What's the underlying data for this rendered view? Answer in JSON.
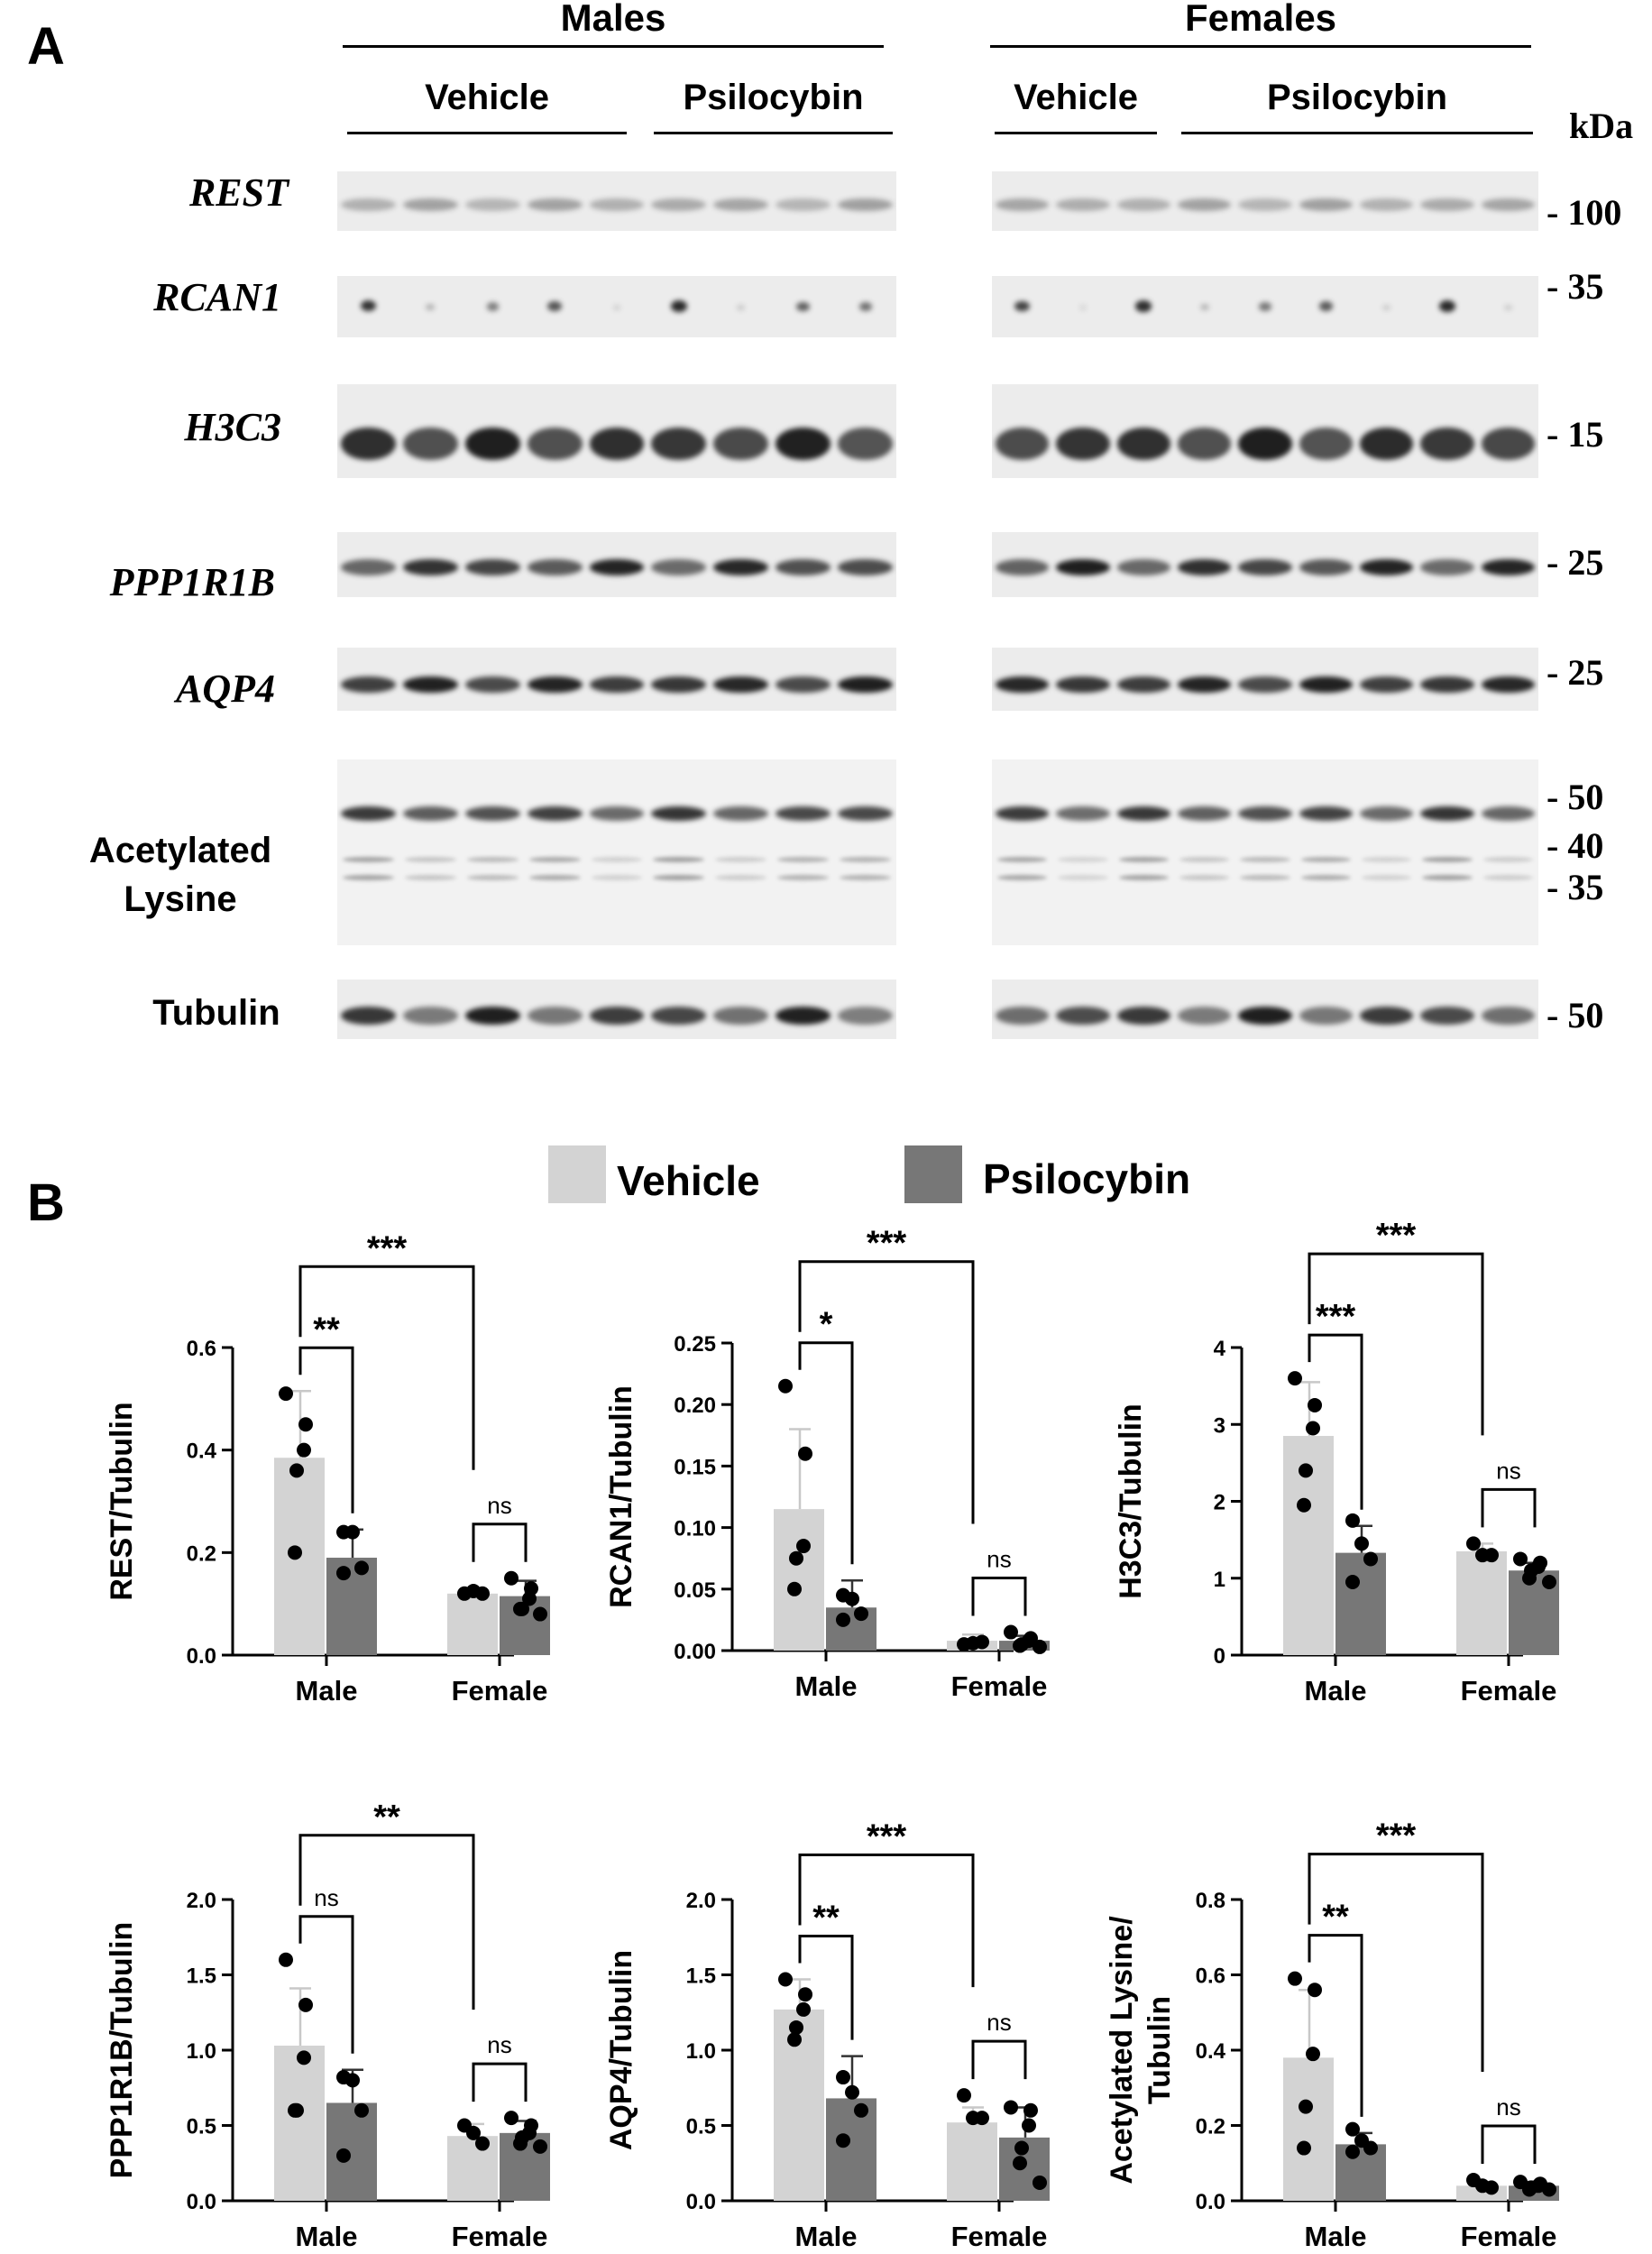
{
  "panel_a": {
    "letter": "A",
    "groups": [
      {
        "title": "Males",
        "sub": [
          {
            "label": "Vehicle"
          },
          {
            "label": "Psilocybin"
          }
        ]
      },
      {
        "title": "Females",
        "sub": [
          {
            "label": "Vehicle"
          },
          {
            "label": "Psilocybin"
          }
        ]
      }
    ],
    "kda_header": "kDa",
    "rows": [
      {
        "label": "REST",
        "style": "gene",
        "markers": [
          "- 100"
        ]
      },
      {
        "label": "RCAN1",
        "style": "gene",
        "markers": [
          "- 35"
        ]
      },
      {
        "label": "H3C3",
        "style": "gene",
        "markers": [
          "- 15"
        ]
      },
      {
        "label": "PPP1R1B",
        "style": "gene",
        "markers": [
          "- 25"
        ]
      },
      {
        "label": "AQP4",
        "style": "gene",
        "markers": [
          "- 25"
        ]
      },
      {
        "label": "Acetylated Lysine",
        "style": "protein",
        "markers": [
          "- 50",
          "- 40",
          "- 35"
        ]
      },
      {
        "label": "Tubulin",
        "style": "protein",
        "markers": [
          "- 50"
        ]
      }
    ]
  },
  "panel_b": {
    "letter": "B",
    "legend": [
      {
        "label": "Vehicle",
        "color": "#d3d3d3"
      },
      {
        "label": "Psilocybin",
        "color": "#777777"
      }
    ]
  },
  "colors": {
    "vehicle": "#d3d3d3",
    "psilocybin": "#777777",
    "point": "#000000"
  },
  "chart_data": [
    {
      "type": "bar",
      "ylabel": "REST/Tubulin",
      "categories": [
        "Male",
        "Female"
      ],
      "ylim": [
        0,
        0.6
      ],
      "yticks": [
        "0.0",
        "0.2",
        "0.4",
        "0.6"
      ],
      "series": [
        {
          "name": "Vehicle",
          "values": [
            0.385,
            0.12
          ],
          "err": [
            0.13,
            0.01
          ],
          "points": [
            [
              0.51,
              0.45,
              0.4,
              0.36,
              0.2
            ],
            [
              0.12,
              0.125,
              0.12
            ]
          ]
        },
        {
          "name": "Psilocybin",
          "values": [
            0.19,
            0.115
          ],
          "err": [
            0.055,
            0.03
          ],
          "points": [
            [
              0.24,
              0.24,
              0.17,
              0.16
            ],
            [
              0.15,
              0.13,
              0.11,
              0.09,
              0.09,
              0.08
            ]
          ]
        }
      ],
      "annotations": [
        {
          "text": "**",
          "between": "Male Vehicle vs Male Psilocybin"
        },
        {
          "text": "ns",
          "between": "Female Vehicle vs Female Psilocybin"
        },
        {
          "text": "***",
          "between": "Male Vehicle vs Female Vehicle"
        }
      ]
    },
    {
      "type": "bar",
      "ylabel": "RCAN1/Tubulin",
      "categories": [
        "Male",
        "Female"
      ],
      "ylim": [
        0,
        0.25
      ],
      "yticks": [
        "0.00",
        "0.05",
        "0.10",
        "0.15",
        "0.20",
        "0.25"
      ],
      "series": [
        {
          "name": "Vehicle",
          "values": [
            0.115,
            0.008
          ],
          "err": [
            0.065,
            0.005
          ],
          "points": [
            [
              0.215,
              0.16,
              0.085,
              0.075,
              0.05
            ],
            [
              0.005,
              0.006,
              0.007
            ]
          ]
        },
        {
          "name": "Psilocybin",
          "values": [
            0.035,
            0.008
          ],
          "err": [
            0.022,
            0.004
          ],
          "points": [
            [
              0.045,
              0.042,
              0.03,
              0.025
            ],
            [
              0.015,
              0.01,
              0.008,
              0.005,
              0.004,
              0.003
            ]
          ]
        }
      ],
      "annotations": [
        {
          "text": "*",
          "between": "Male Vehicle vs Male Psilocybin"
        },
        {
          "text": "ns",
          "between": "Female Vehicle vs Female Psilocybin"
        },
        {
          "text": "***",
          "between": "Male Vehicle vs Female Vehicle"
        }
      ]
    },
    {
      "type": "bar",
      "ylabel": "H3C3/Tubulin",
      "categories": [
        "Male",
        "Female"
      ],
      "ylim": [
        0,
        4
      ],
      "yticks": [
        "0",
        "1",
        "2",
        "3",
        "4"
      ],
      "series": [
        {
          "name": "Vehicle",
          "values": [
            2.85,
            1.35
          ],
          "err": [
            0.7,
            0.1
          ],
          "points": [
            [
              3.6,
              3.25,
              2.95,
              2.4,
              1.95
            ],
            [
              1.45,
              1.3,
              1.3
            ]
          ]
        },
        {
          "name": "Psilocybin",
          "values": [
            1.33,
            1.1
          ],
          "err": [
            0.35,
            0.1
          ],
          "points": [
            [
              1.75,
              1.45,
              1.25,
              0.95
            ],
            [
              1.25,
              1.2,
              1.15,
              1.1,
              1.0,
              0.95
            ]
          ]
        }
      ],
      "annotations": [
        {
          "text": "***",
          "between": "Male Vehicle vs Male Psilocybin"
        },
        {
          "text": "ns",
          "between": "Female Vehicle vs Female Psilocybin"
        },
        {
          "text": "***",
          "between": "Male Vehicle vs Female Vehicle"
        }
      ]
    },
    {
      "type": "bar",
      "ylabel": "PPP1R1B/Tubulin",
      "categories": [
        "Male",
        "Female"
      ],
      "ylim": [
        0,
        2.0
      ],
      "yticks": [
        "0.0",
        "0.5",
        "1.0",
        "1.5",
        "2.0"
      ],
      "series": [
        {
          "name": "Vehicle",
          "values": [
            1.03,
            0.43
          ],
          "err": [
            0.38,
            0.08
          ],
          "points": [
            [
              1.6,
              1.3,
              0.95,
              0.6,
              0.6
            ],
            [
              0.5,
              0.45,
              0.38
            ]
          ]
        },
        {
          "name": "Psilocybin",
          "values": [
            0.65,
            0.45
          ],
          "err": [
            0.22,
            0.08
          ],
          "points": [
            [
              0.82,
              0.8,
              0.6,
              0.3
            ],
            [
              0.55,
              0.5,
              0.45,
              0.42,
              0.38,
              0.36
            ]
          ]
        }
      ],
      "annotations": [
        {
          "text": "ns",
          "between": "Male Vehicle vs Male Psilocybin"
        },
        {
          "text": "ns",
          "between": "Female Vehicle vs Female Psilocybin"
        },
        {
          "text": "**",
          "between": "Male Vehicle vs Female Vehicle"
        }
      ]
    },
    {
      "type": "bar",
      "ylabel": "AQP4/Tubulin",
      "categories": [
        "Male",
        "Female"
      ],
      "ylim": [
        0,
        2.0
      ],
      "yticks": [
        "0.0",
        "0.5",
        "1.0",
        "1.5",
        "2.0"
      ],
      "series": [
        {
          "name": "Vehicle",
          "values": [
            1.27,
            0.52
          ],
          "err": [
            0.2,
            0.1
          ],
          "points": [
            [
              1.47,
              1.37,
              1.27,
              1.15,
              1.07
            ],
            [
              0.7,
              0.55,
              0.55
            ]
          ]
        },
        {
          "name": "Psilocybin",
          "values": [
            0.68,
            0.42
          ],
          "err": [
            0.28,
            0.2
          ],
          "points": [
            [
              0.82,
              0.72,
              0.6,
              0.4
            ],
            [
              0.62,
              0.6,
              0.5,
              0.35,
              0.25,
              0.12
            ]
          ]
        }
      ],
      "annotations": [
        {
          "text": "**",
          "between": "Male Vehicle vs Male Psilocybin"
        },
        {
          "text": "ns",
          "between": "Female Vehicle vs Female Psilocybin"
        },
        {
          "text": "***",
          "between": "Male Vehicle vs Female Vehicle"
        }
      ]
    },
    {
      "type": "bar",
      "ylabel": "Acetylated Lysine/ Tubulin",
      "ylabel_lines": [
        "Acetylated Lysine/",
        "Tubulin"
      ],
      "categories": [
        "Male",
        "Female"
      ],
      "ylim": [
        0,
        0.8
      ],
      "yticks": [
        "0.0",
        "0.2",
        "0.4",
        "0.6",
        "0.8"
      ],
      "series": [
        {
          "name": "Vehicle",
          "values": [
            0.38,
            0.04
          ],
          "err": [
            0.18,
            0.01
          ],
          "points": [
            [
              0.59,
              0.56,
              0.39,
              0.25,
              0.14
            ],
            [
              0.055,
              0.04,
              0.035
            ]
          ]
        },
        {
          "name": "Psilocybin",
          "values": [
            0.15,
            0.04
          ],
          "err": [
            0.03,
            0.01
          ],
          "points": [
            [
              0.19,
              0.16,
              0.14,
              0.13
            ],
            [
              0.05,
              0.045,
              0.04,
              0.035,
              0.03,
              0.03
            ]
          ]
        }
      ],
      "annotations": [
        {
          "text": "**",
          "between": "Male Vehicle vs Male Psilocybin"
        },
        {
          "text": "ns",
          "between": "Female Vehicle vs Female Psilocybin"
        },
        {
          "text": "***",
          "between": "Male Vehicle vs Female Vehicle"
        }
      ]
    }
  ]
}
